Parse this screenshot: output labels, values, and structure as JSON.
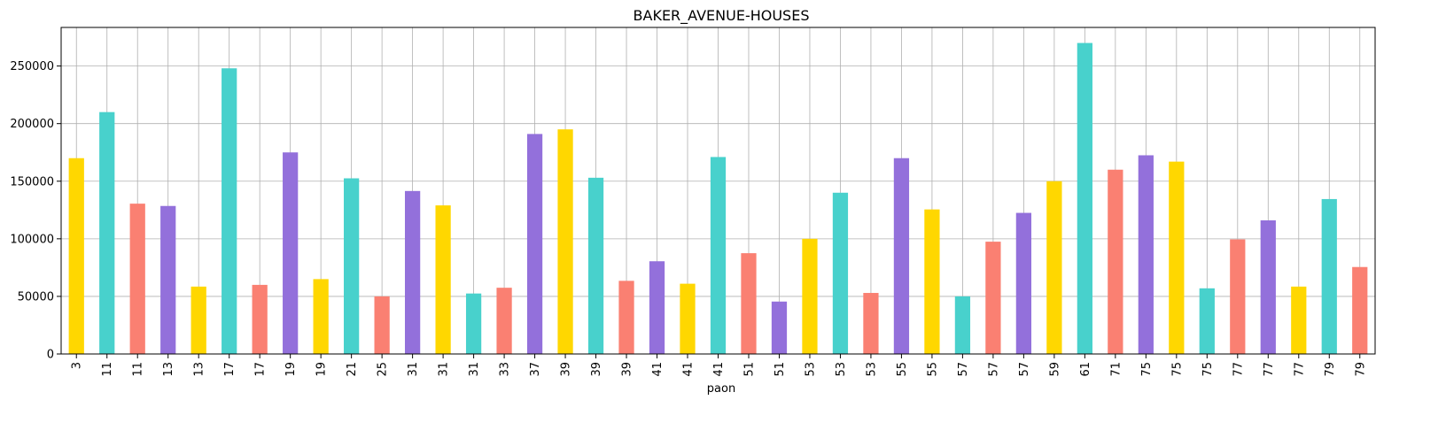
{
  "chart_data": {
    "type": "bar",
    "title": "BAKER_AVENUE-HOUSES",
    "xlabel": "paon",
    "ylabel": "",
    "ylim": [
      0,
      283500
    ],
    "yticks": [
      0,
      50000,
      100000,
      150000,
      200000,
      250000
    ],
    "grid": true,
    "legend": "none",
    "colors": [
      "#FFD700",
      "#48D1CC",
      "#FA8072",
      "#9370DB"
    ],
    "categories": [
      "3",
      "11",
      "11",
      "13",
      "13",
      "17",
      "17",
      "19",
      "19",
      "21",
      "25",
      "31",
      "31",
      "31",
      "33",
      "37",
      "39",
      "39",
      "39",
      "41",
      "41",
      "41",
      "51",
      "51",
      "53",
      "53",
      "53",
      "55",
      "55",
      "57",
      "57",
      "57",
      "59",
      "61",
      "71",
      "75",
      "75",
      "75",
      "77",
      "77",
      "77",
      "79",
      "79"
    ],
    "values": [
      170000,
      210000,
      130500,
      128500,
      58500,
      248000,
      60000,
      175000,
      65000,
      152500,
      50000,
      141500,
      129000,
      52500,
      57500,
      191000,
      195000,
      153000,
      63500,
      80500,
      61000,
      171000,
      87500,
      45500,
      100000,
      140000,
      53000,
      170000,
      125500,
      50000,
      97500,
      122500,
      150000,
      270000,
      160000,
      172500,
      167000,
      57000,
      99500,
      116000,
      58500,
      134500,
      75500
    ]
  }
}
